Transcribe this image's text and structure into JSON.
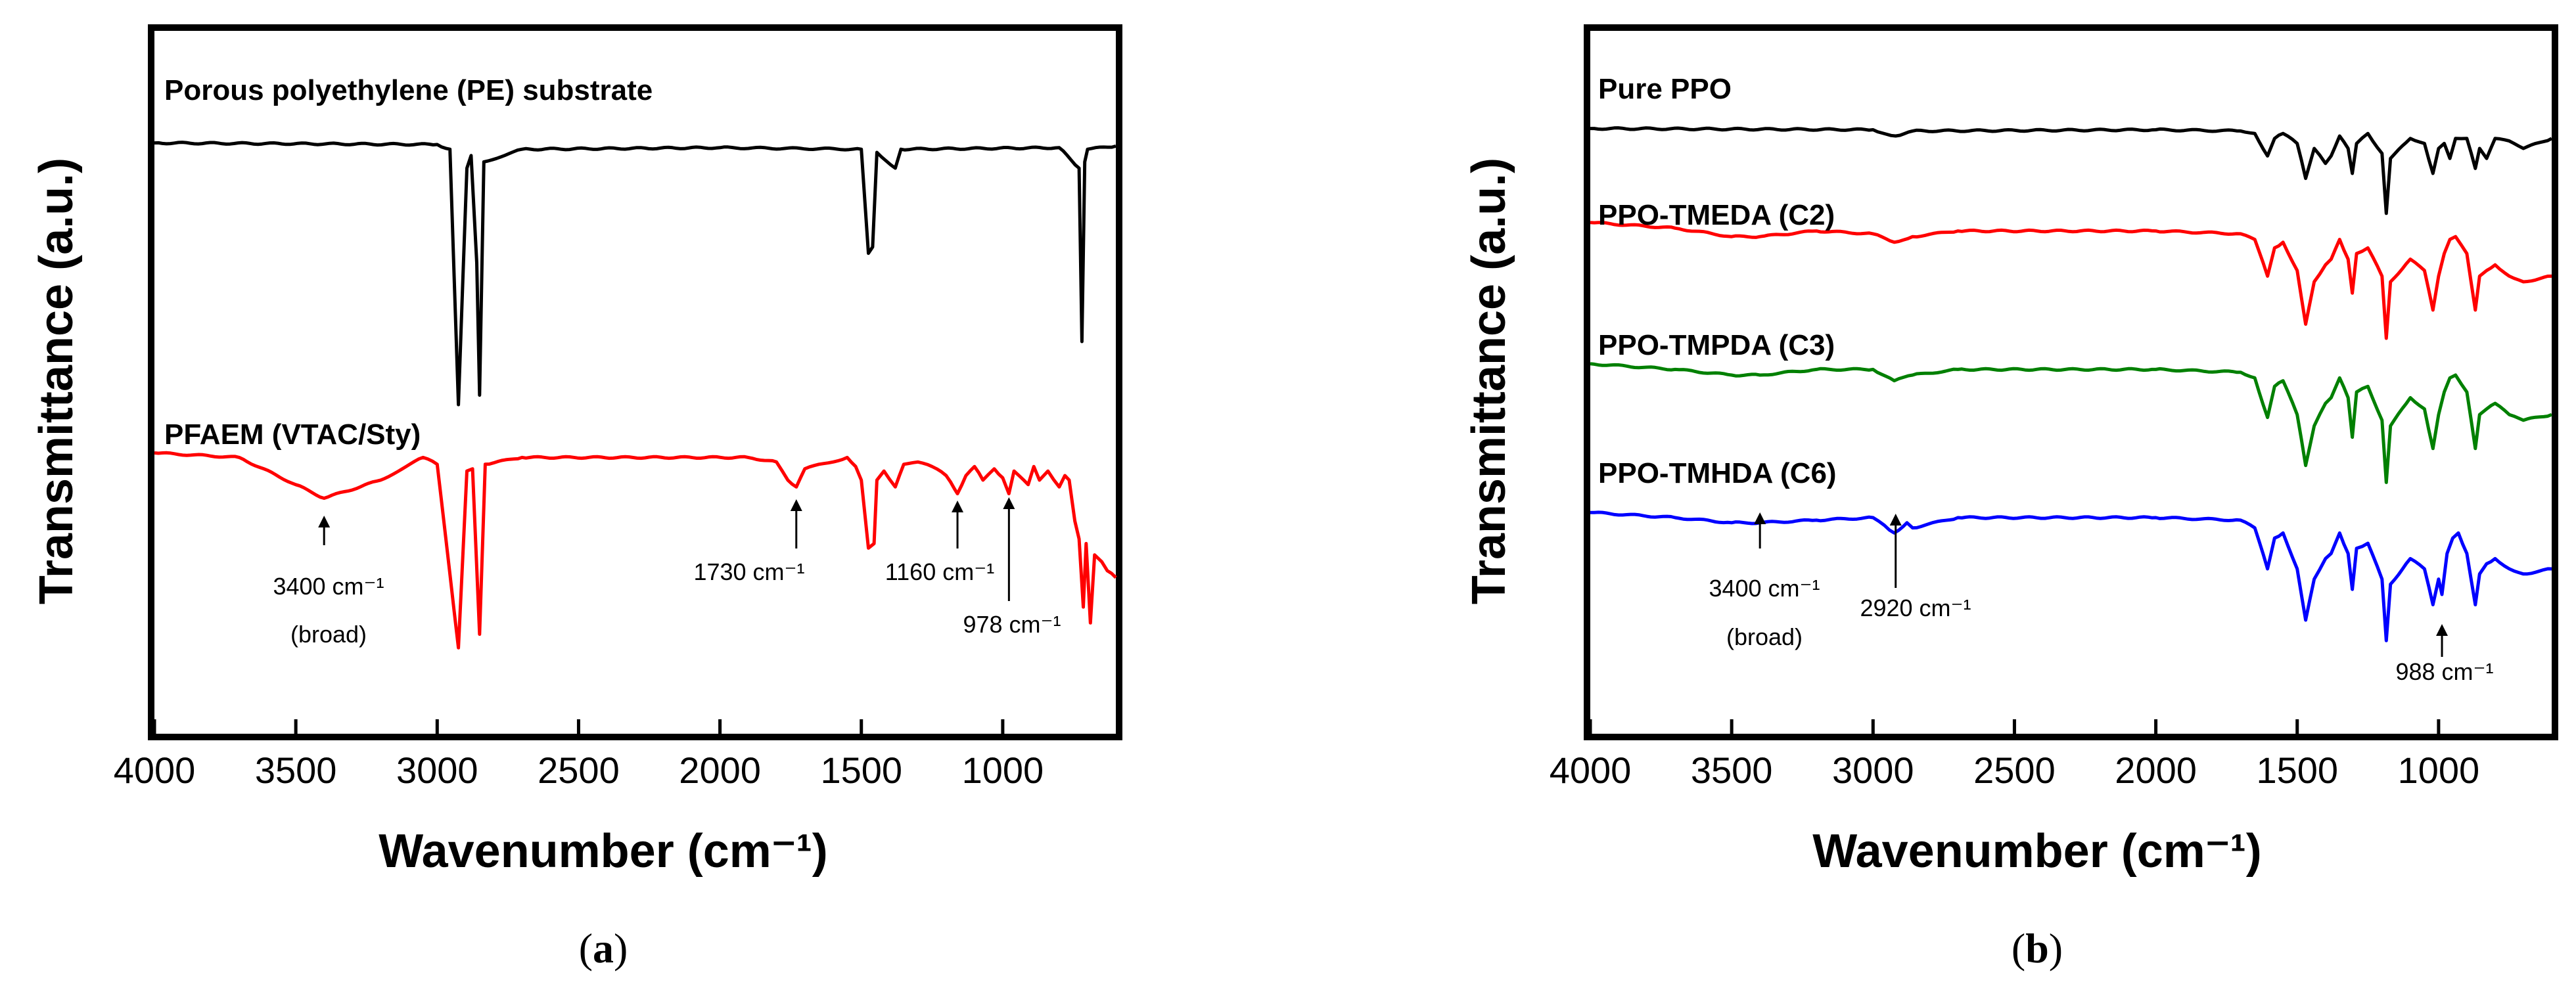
{
  "chart_data": [
    {
      "type": "line",
      "panel": "(a)",
      "panel_letter": "a",
      "xlabel": "Wavenumber (cm⁻¹)",
      "ylabel": "Transmittance (a.u.)",
      "xlim": [
        4000,
        600
      ],
      "x_ticks": [
        4000,
        3500,
        3000,
        2500,
        2000,
        1500,
        1000
      ],
      "series": [
        {
          "name": "Porous polyethylene (PE) substrate",
          "color": "#000000",
          "baseline": 0.88,
          "points": [
            [
              4000,
              0.88
            ],
            [
              3000,
              0.875
            ],
            [
              2955,
              0.86
            ],
            [
              2925,
              0.05
            ],
            [
              2895,
              0.8
            ],
            [
              2880,
              0.84
            ],
            [
              2860,
              0.5
            ],
            [
              2850,
              0.08
            ],
            [
              2835,
              0.82
            ],
            [
              2700,
              0.86
            ],
            [
              2000,
              0.865
            ],
            [
              1500,
              0.86
            ],
            [
              1475,
              0.53
            ],
            [
              1460,
              0.55
            ],
            [
              1445,
              0.85
            ],
            [
              1380,
              0.8
            ],
            [
              1360,
              0.86
            ],
            [
              800,
              0.865
            ],
            [
              730,
              0.8
            ],
            [
              720,
              0.25
            ],
            [
              710,
              0.82
            ],
            [
              700,
              0.86
            ],
            [
              600,
              0.87
            ]
          ]
        },
        {
          "name": "PFAEM (VTAC/Sty)",
          "color": "#ff0000",
          "baseline": 0.9,
          "points": [
            [
              4000,
              0.9
            ],
            [
              3700,
              0.88
            ],
            [
              3500,
              0.76
            ],
            [
              3400,
              0.7
            ],
            [
              3200,
              0.78
            ],
            [
              3050,
              0.88
            ],
            [
              3000,
              0.85
            ],
            [
              2925,
              0.04
            ],
            [
              2895,
              0.82
            ],
            [
              2875,
              0.83
            ],
            [
              2850,
              0.1
            ],
            [
              2830,
              0.85
            ],
            [
              2700,
              0.88
            ],
            [
              1900,
              0.88
            ],
            [
              1800,
              0.86
            ],
            [
              1760,
              0.78
            ],
            [
              1730,
              0.75
            ],
            [
              1700,
              0.83
            ],
            [
              1650,
              0.85
            ],
            [
              1600,
              0.86
            ],
            [
              1550,
              0.88
            ],
            [
              1520,
              0.84
            ],
            [
              1500,
              0.78
            ],
            [
              1475,
              0.48
            ],
            [
              1455,
              0.5
            ],
            [
              1445,
              0.78
            ],
            [
              1420,
              0.82
            ],
            [
              1380,
              0.75
            ],
            [
              1350,
              0.85
            ],
            [
              1300,
              0.86
            ],
            [
              1250,
              0.84
            ],
            [
              1200,
              0.8
            ],
            [
              1170,
              0.74
            ],
            [
              1160,
              0.72
            ],
            [
              1130,
              0.8
            ],
            [
              1100,
              0.84
            ],
            [
              1070,
              0.78
            ],
            [
              1030,
              0.83
            ],
            [
              1000,
              0.79
            ],
            [
              978,
              0.72
            ],
            [
              960,
              0.82
            ],
            [
              910,
              0.76
            ],
            [
              890,
              0.84
            ],
            [
              870,
              0.78
            ],
            [
              840,
              0.82
            ],
            [
              800,
              0.75
            ],
            [
              780,
              0.8
            ],
            [
              765,
              0.78
            ],
            [
              745,
              0.6
            ],
            [
              730,
              0.52
            ],
            [
              715,
              0.22
            ],
            [
              705,
              0.5
            ],
            [
              690,
              0.15
            ],
            [
              675,
              0.45
            ],
            [
              650,
              0.42
            ],
            [
              630,
              0.38
            ],
            [
              600,
              0.35
            ]
          ]
        }
      ],
      "annotations": [
        {
          "text": "3400 cm⁻¹",
          "x": 3400
        },
        {
          "text": "(broad)",
          "x": 3400
        },
        {
          "text": "1730 cm⁻¹",
          "x": 1730
        },
        {
          "text": "1160 cm⁻¹",
          "x": 1160
        },
        {
          "text": "978 cm⁻¹",
          "x": 978
        }
      ]
    },
    {
      "type": "line",
      "panel": "(b)",
      "panel_letter": "b",
      "xlabel": "Wavenumber (cm⁻¹)",
      "ylabel": "Transmittance (a.u.)",
      "xlim": [
        4000,
        600
      ],
      "x_ticks": [
        4000,
        3500,
        3000,
        2500,
        2000,
        1500,
        1000
      ],
      "series": [
        {
          "name": "Pure PPO",
          "color": "#000000",
          "points": [
            [
              4000,
              0.88
            ],
            [
              3000,
              0.875
            ],
            [
              2920,
              0.85
            ],
            [
              2860,
              0.87
            ],
            [
              2000,
              0.875
            ],
            [
              1700,
              0.87
            ],
            [
              1650,
              0.86
            ],
            [
              1605,
              0.77
            ],
            [
              1580,
              0.84
            ],
            [
              1550,
              0.86
            ],
            [
              1500,
              0.82
            ],
            [
              1470,
              0.68
            ],
            [
              1440,
              0.8
            ],
            [
              1400,
              0.74
            ],
            [
              1380,
              0.77
            ],
            [
              1350,
              0.85
            ],
            [
              1320,
              0.8
            ],
            [
              1305,
              0.7
            ],
            [
              1290,
              0.82
            ],
            [
              1250,
              0.86
            ],
            [
              1200,
              0.78
            ],
            [
              1185,
              0.54
            ],
            [
              1170,
              0.76
            ],
            [
              1100,
              0.84
            ],
            [
              1050,
              0.82
            ],
            [
              1020,
              0.7
            ],
            [
              1000,
              0.8
            ],
            [
              980,
              0.82
            ],
            [
              960,
              0.76
            ],
            [
              940,
              0.84
            ],
            [
              900,
              0.84
            ],
            [
              870,
              0.72
            ],
            [
              855,
              0.8
            ],
            [
              830,
              0.76
            ],
            [
              800,
              0.84
            ],
            [
              750,
              0.83
            ],
            [
              700,
              0.8
            ],
            [
              600,
              0.84
            ]
          ]
        },
        {
          "name": "PPO-TMEDA (C2)",
          "color": "#ff0000",
          "points": [
            [
              4000,
              0.91
            ],
            [
              3700,
              0.89
            ],
            [
              3500,
              0.86
            ],
            [
              3400,
              0.86
            ],
            [
              3200,
              0.88
            ],
            [
              3000,
              0.87
            ],
            [
              2925,
              0.84
            ],
            [
              2860,
              0.86
            ],
            [
              2700,
              0.88
            ],
            [
              2000,
              0.88
            ],
            [
              1700,
              0.87
            ],
            [
              1650,
              0.85
            ],
            [
              1605,
              0.72
            ],
            [
              1580,
              0.82
            ],
            [
              1550,
              0.84
            ],
            [
              1500,
              0.74
            ],
            [
              1470,
              0.55
            ],
            [
              1440,
              0.7
            ],
            [
              1400,
              0.76
            ],
            [
              1380,
              0.78
            ],
            [
              1350,
              0.85
            ],
            [
              1320,
              0.78
            ],
            [
              1305,
              0.66
            ],
            [
              1290,
              0.8
            ],
            [
              1250,
              0.82
            ],
            [
              1200,
              0.72
            ],
            [
              1185,
              0.5
            ],
            [
              1170,
              0.7
            ],
            [
              1100,
              0.78
            ],
            [
              1050,
              0.74
            ],
            [
              1020,
              0.6
            ],
            [
              1000,
              0.72
            ],
            [
              980,
              0.8
            ],
            [
              960,
              0.85
            ],
            [
              940,
              0.86
            ],
            [
              900,
              0.8
            ],
            [
              870,
              0.6
            ],
            [
              855,
              0.72
            ],
            [
              830,
              0.74
            ],
            [
              800,
              0.76
            ],
            [
              750,
              0.72
            ],
            [
              700,
              0.7
            ],
            [
              600,
              0.72
            ]
          ]
        },
        {
          "name": "PPO-TMPDA (C3)",
          "color": "#008000",
          "points": [
            [
              4000,
              0.84
            ],
            [
              3700,
              0.82
            ],
            [
              3500,
              0.8
            ],
            [
              3400,
              0.8
            ],
            [
              3200,
              0.82
            ],
            [
              3000,
              0.82
            ],
            [
              2925,
              0.78
            ],
            [
              2860,
              0.8
            ],
            [
              2700,
              0.82
            ],
            [
              2000,
              0.82
            ],
            [
              1700,
              0.81
            ],
            [
              1650,
              0.79
            ],
            [
              1605,
              0.65
            ],
            [
              1580,
              0.76
            ],
            [
              1550,
              0.78
            ],
            [
              1500,
              0.66
            ],
            [
              1470,
              0.48
            ],
            [
              1440,
              0.62
            ],
            [
              1400,
              0.7
            ],
            [
              1380,
              0.72
            ],
            [
              1350,
              0.79
            ],
            [
              1320,
              0.72
            ],
            [
              1305,
              0.58
            ],
            [
              1290,
              0.74
            ],
            [
              1250,
              0.76
            ],
            [
              1200,
              0.64
            ],
            [
              1185,
              0.42
            ],
            [
              1170,
              0.62
            ],
            [
              1100,
              0.72
            ],
            [
              1050,
              0.68
            ],
            [
              1020,
              0.54
            ],
            [
              1000,
              0.66
            ],
            [
              980,
              0.74
            ],
            [
              960,
              0.79
            ],
            [
              940,
              0.8
            ],
            [
              900,
              0.74
            ],
            [
              870,
              0.54
            ],
            [
              855,
              0.66
            ],
            [
              830,
              0.68
            ],
            [
              800,
              0.7
            ],
            [
              750,
              0.66
            ],
            [
              700,
              0.64
            ],
            [
              600,
              0.66
            ]
          ]
        },
        {
          "name": "PPO-TMHDA (C6)",
          "color": "#0000ff",
          "points": [
            [
              4000,
              0.82
            ],
            [
              3700,
              0.8
            ],
            [
              3500,
              0.78
            ],
            [
              3400,
              0.78
            ],
            [
              3200,
              0.79
            ],
            [
              3000,
              0.8
            ],
            [
              2960,
              0.77
            ],
            [
              2925,
              0.74
            ],
            [
              2880,
              0.78
            ],
            [
              2860,
              0.76
            ],
            [
              2700,
              0.8
            ],
            [
              2000,
              0.8
            ],
            [
              1700,
              0.79
            ],
            [
              1650,
              0.76
            ],
            [
              1605,
              0.6
            ],
            [
              1580,
              0.72
            ],
            [
              1550,
              0.74
            ],
            [
              1500,
              0.6
            ],
            [
              1470,
              0.4
            ],
            [
              1440,
              0.56
            ],
            [
              1400,
              0.64
            ],
            [
              1380,
              0.66
            ],
            [
              1350,
              0.74
            ],
            [
              1320,
              0.66
            ],
            [
              1305,
              0.52
            ],
            [
              1290,
              0.68
            ],
            [
              1250,
              0.7
            ],
            [
              1200,
              0.56
            ],
            [
              1185,
              0.32
            ],
            [
              1170,
              0.54
            ],
            [
              1100,
              0.64
            ],
            [
              1050,
              0.6
            ],
            [
              1020,
              0.46
            ],
            [
              1000,
              0.56
            ],
            [
              988,
              0.5
            ],
            [
              970,
              0.66
            ],
            [
              950,
              0.72
            ],
            [
              930,
              0.74
            ],
            [
              900,
              0.66
            ],
            [
              870,
              0.46
            ],
            [
              855,
              0.58
            ],
            [
              830,
              0.62
            ],
            [
              800,
              0.64
            ],
            [
              750,
              0.6
            ],
            [
              700,
              0.58
            ],
            [
              600,
              0.6
            ]
          ]
        }
      ],
      "annotations": [
        {
          "text": "3400 cm⁻¹",
          "x": 3400
        },
        {
          "text": "(broad)",
          "x": 3400
        },
        {
          "text": "2920 cm⁻¹",
          "x": 2920
        },
        {
          "text": "988 cm⁻¹",
          "x": 988
        }
      ]
    }
  ]
}
